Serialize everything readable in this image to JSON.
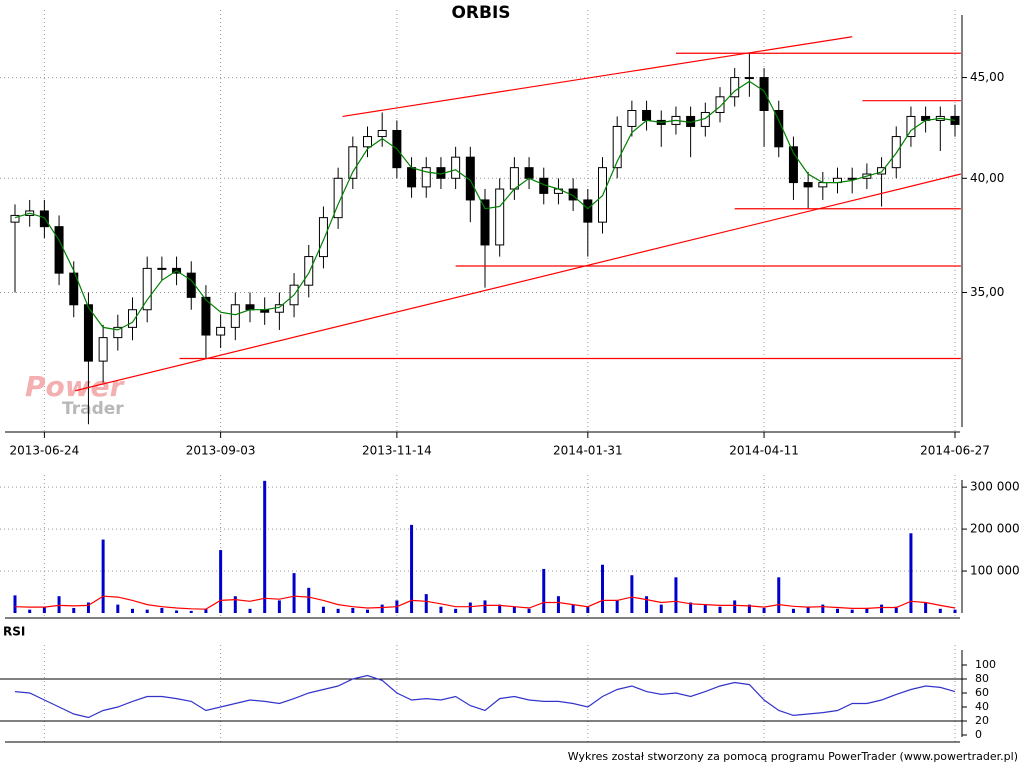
{
  "chart_data": [
    {
      "type": "candlestick",
      "title": "ORBIS",
      "categories": [
        null,
        null,
        "2013-06-24",
        null,
        null,
        null,
        null,
        null,
        null,
        null,
        null,
        null,
        null,
        null,
        "2013-09-03",
        null,
        null,
        null,
        null,
        null,
        null,
        null,
        null,
        null,
        null,
        null,
        "2013-11-14",
        null,
        null,
        null,
        null,
        null,
        null,
        null,
        null,
        null,
        null,
        null,
        null,
        "2014-01-31",
        null,
        null,
        null,
        null,
        null,
        null,
        null,
        null,
        null,
        null,
        null,
        "2014-04-11",
        null,
        null,
        null,
        null,
        null,
        null,
        null,
        null,
        null,
        null,
        null,
        null,
        "2014-06-27"
      ],
      "open": [
        38.0,
        38.3,
        38.5,
        37.8,
        35.8,
        34.5,
        32.3,
        33.2,
        33.6,
        34.3,
        36.0,
        36.0,
        35.8,
        34.8,
        33.3,
        33.6,
        34.5,
        34.3,
        34.2,
        34.5,
        35.3,
        36.5,
        38.2,
        40.0,
        41.5,
        42.0,
        42.3,
        40.5,
        39.6,
        40.5,
        40.0,
        41.0,
        39.0,
        37.0,
        39.5,
        40.5,
        40.0,
        39.3,
        39.5,
        39.0,
        38.0,
        40.5,
        42.5,
        43.3,
        42.8,
        42.6,
        43.0,
        42.5,
        43.2,
        44.0,
        45.0,
        45.0,
        43.3,
        41.5,
        39.8,
        39.6,
        39.8,
        40.0,
        40.0,
        40.2,
        40.5,
        42.0,
        43.0,
        42.8,
        43.0
      ],
      "high": [
        38.8,
        39.0,
        39.0,
        38.3,
        36.3,
        35.0,
        33.7,
        34.1,
        34.8,
        36.5,
        36.5,
        36.5,
        36.3,
        35.3,
        34.1,
        35.0,
        35.0,
        34.8,
        35.0,
        35.8,
        37.0,
        38.7,
        40.5,
        42.0,
        42.5,
        43.2,
        42.8,
        41.0,
        41.0,
        41.0,
        41.5,
        41.5,
        39.5,
        40.0,
        41.0,
        41.0,
        40.5,
        40.0,
        40.0,
        39.5,
        41.0,
        43.0,
        43.8,
        43.8,
        43.3,
        43.5,
        43.5,
        43.7,
        44.5,
        45.5,
        46.3,
        45.5,
        43.8,
        42.0,
        40.3,
        40.3,
        40.5,
        40.5,
        40.7,
        41.0,
        42.5,
        43.5,
        43.5,
        43.5,
        43.6
      ],
      "low": [
        35.0,
        37.8,
        37.3,
        35.3,
        34.0,
        30.0,
        31.5,
        32.7,
        33.1,
        33.8,
        35.5,
        35.3,
        34.3,
        32.4,
        32.8,
        33.1,
        33.8,
        33.7,
        33.5,
        34.0,
        34.8,
        36.0,
        37.7,
        39.5,
        41.0,
        41.5,
        40.0,
        39.1,
        39.1,
        39.5,
        39.5,
        38.0,
        35.2,
        36.5,
        39.0,
        39.5,
        38.8,
        38.8,
        38.5,
        36.5,
        37.5,
        40.0,
        42.0,
        42.3,
        41.5,
        42.1,
        41.0,
        42.0,
        42.7,
        43.5,
        44.0,
        41.5,
        41.0,
        39.0,
        38.6,
        39.0,
        39.3,
        39.3,
        39.5,
        38.7,
        40.0,
        41.5,
        42.2,
        41.3,
        42.0
      ],
      "close": [
        38.3,
        38.5,
        37.8,
        35.8,
        34.5,
        32.3,
        33.2,
        33.6,
        34.3,
        36.0,
        36.0,
        35.8,
        34.8,
        33.3,
        33.6,
        34.5,
        34.3,
        34.2,
        34.5,
        35.3,
        36.5,
        38.2,
        40.0,
        41.5,
        42.0,
        42.3,
        40.5,
        39.6,
        40.5,
        40.0,
        41.0,
        39.0,
        37.0,
        39.5,
        40.5,
        40.0,
        39.3,
        39.5,
        39.0,
        38.0,
        40.5,
        42.5,
        43.3,
        42.8,
        42.6,
        43.0,
        42.5,
        43.2,
        44.0,
        45.0,
        45.0,
        43.3,
        41.5,
        39.8,
        39.6,
        39.8,
        40.0,
        40.0,
        40.2,
        40.5,
        42.0,
        43.0,
        42.8,
        43.0,
        42.6
      ],
      "ma": {
        "color": "#008000",
        "values": [
          38.2,
          38.4,
          38.2,
          37.2,
          35.9,
          34.4,
          33.6,
          33.5,
          33.8,
          34.7,
          35.5,
          35.9,
          35.5,
          34.7,
          34.2,
          34.1,
          34.3,
          34.3,
          34.4,
          34.9,
          35.8,
          37.2,
          38.8,
          40.3,
          41.4,
          41.9,
          41.4,
          40.5,
          40.3,
          40.2,
          40.4,
          39.9,
          38.6,
          38.7,
          39.5,
          40.0,
          39.7,
          39.5,
          39.2,
          38.6,
          39.2,
          40.8,
          42.2,
          42.8,
          42.7,
          42.8,
          42.7,
          42.9,
          43.5,
          44.3,
          44.8,
          44.3,
          42.8,
          41.2,
          40.2,
          39.8,
          39.8,
          39.9,
          40.1,
          40.3,
          41.2,
          42.3,
          42.8,
          42.9,
          42.8
        ]
      },
      "lines": [
        {
          "color": "#ff0000",
          "x": [
            22.3,
            57
          ],
          "y": [
            43.0,
            47.2
          ]
        },
        {
          "color": "#ff0000",
          "x": [
            4.1,
            64.4
          ],
          "y": [
            31.2,
            40.2
          ]
        },
        {
          "color": "#ff0000",
          "x": [
            45,
            64.4
          ],
          "y": [
            46.3,
            46.3
          ]
        },
        {
          "color": "#ff0000",
          "x": [
            57.7,
            64.4
          ],
          "y": [
            43.8,
            43.8
          ]
        },
        {
          "color": "#ff0000",
          "x": [
            49,
            64.4
          ],
          "y": [
            38.6,
            38.6
          ]
        },
        {
          "color": "#ff0000",
          "x": [
            30,
            64.4
          ],
          "y": [
            36.1,
            36.1
          ]
        },
        {
          "color": "#ff0000",
          "x": [
            11.2,
            64.4
          ],
          "y": [
            32.4,
            32.4
          ]
        }
      ],
      "ylim": [
        29.8,
        48.7
      ],
      "log": true,
      "yticks": [
        {
          "value": 35,
          "label": "35,00"
        },
        {
          "value": 40,
          "label": "40,00"
        },
        {
          "value": 45,
          "label": "45,00"
        }
      ],
      "grid": true,
      "watermark": [
        "Power",
        "Trader"
      ]
    },
    {
      "type": "bar",
      "color": "#0000cc",
      "values": [
        42000,
        8000,
        15000,
        40000,
        12000,
        25000,
        175000,
        20000,
        10000,
        8000,
        12000,
        6000,
        5000,
        9000,
        150000,
        40000,
        10000,
        315000,
        30000,
        95000,
        60000,
        15000,
        10000,
        12000,
        8000,
        20000,
        30000,
        210000,
        45000,
        15000,
        10000,
        25000,
        30000,
        20000,
        15000,
        10000,
        105000,
        40000,
        20000,
        15000,
        115000,
        30000,
        90000,
        40000,
        20000,
        85000,
        25000,
        20000,
        15000,
        30000,
        20000,
        12000,
        85000,
        10000,
        15000,
        20000,
        10000,
        8000,
        12000,
        20000,
        15000,
        190000,
        25000,
        10000,
        8000
      ],
      "average": {
        "color": "#ff0000",
        "values": [
          15000,
          14000,
          14000,
          18000,
          17000,
          18000,
          40000,
          38000,
          30000,
          20000,
          15000,
          12000,
          10000,
          9000,
          30000,
          32000,
          28000,
          35000,
          33000,
          40000,
          38000,
          30000,
          20000,
          15000,
          12000,
          13000,
          15000,
          30000,
          28000,
          22000,
          15000,
          15000,
          18000,
          18000,
          15000,
          12000,
          25000,
          25000,
          20000,
          15000,
          30000,
          30000,
          38000,
          32000,
          25000,
          28000,
          22000,
          20000,
          18000,
          18000,
          17000,
          14000,
          20000,
          16000,
          14000,
          15000,
          13000,
          11000,
          11000,
          13000,
          13000,
          28000,
          25000,
          18000,
          12000
        ]
      },
      "ylim": [
        0,
        317000
      ],
      "yticks": [
        {
          "value": 100000,
          "label": "100 000"
        },
        {
          "value": 200000,
          "label": "200 000"
        },
        {
          "value": 300000,
          "label": "300 000"
        }
      ]
    },
    {
      "type": "line",
      "title": "RSI",
      "color": "#3333cc",
      "values": [
        62,
        60,
        50,
        40,
        30,
        25,
        35,
        40,
        48,
        55,
        55,
        52,
        48,
        35,
        40,
        45,
        50,
        48,
        45,
        52,
        60,
        65,
        70,
        80,
        85,
        78,
        60,
        50,
        52,
        50,
        55,
        42,
        35,
        52,
        55,
        50,
        48,
        48,
        45,
        40,
        55,
        65,
        70,
        62,
        58,
        60,
        55,
        62,
        70,
        75,
        72,
        50,
        35,
        28,
        30,
        32,
        35,
        45,
        45,
        50,
        58,
        65,
        70,
        68,
        62
      ],
      "ylim": [
        0,
        100
      ],
      "yticks": [
        0,
        20,
        40,
        60,
        80,
        100
      ],
      "levels": [
        20,
        80
      ]
    }
  ],
  "footer": "Wykres został stworzony za pomocą programu PowerTrader (www.powertrader.pl)"
}
